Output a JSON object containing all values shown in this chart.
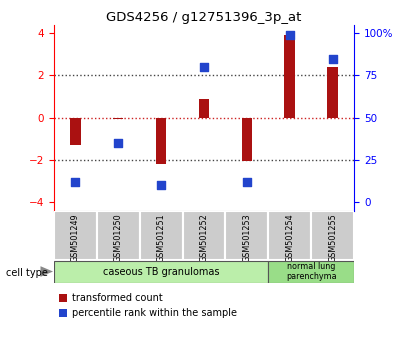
{
  "title": "GDS4256 / g12751396_3p_at",
  "samples": [
    "GSM501249",
    "GSM501250",
    "GSM501251",
    "GSM501252",
    "GSM501253",
    "GSM501254",
    "GSM501255"
  ],
  "bar_values": [
    -1.3,
    -0.05,
    -2.2,
    0.9,
    -2.05,
    3.9,
    2.4
  ],
  "dot_percentiles": [
    12,
    35,
    10,
    80,
    12,
    99,
    85
  ],
  "ylim": [
    -4.4,
    4.4
  ],
  "y_left_ticks": [
    -4,
    -2,
    0,
    2,
    4
  ],
  "y_right_ticks": [
    0,
    25,
    50,
    75,
    100
  ],
  "y_right_labels": [
    "0",
    "25",
    "50",
    "75",
    "100%"
  ],
  "bar_color": "#aa1111",
  "dot_color": "#2244cc",
  "dotted_line_color": "#444444",
  "zero_line_color": "#cc2222",
  "group1_label": "caseous TB granulomas",
  "group2_label": "normal lung\nparenchyma",
  "cell_type_label": "cell type",
  "legend1_label": "transformed count",
  "legend2_label": "percentile rank within the sample",
  "group1_color": "#bbeeaa",
  "group2_color": "#99dd88",
  "tick_label_bg": "#cccccc",
  "background_color": "#ffffff",
  "bar_width": 0.25,
  "dot_size": 28
}
